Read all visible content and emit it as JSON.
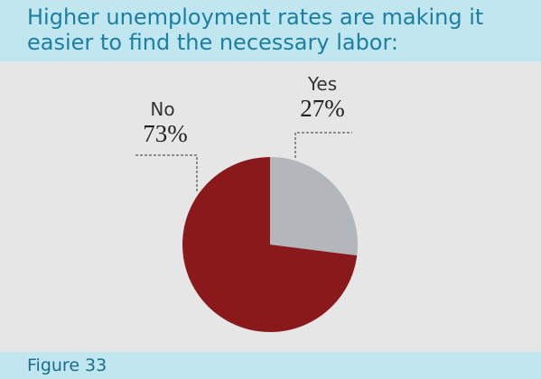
{
  "chart_data": {
    "type": "pie",
    "title": "Higher unemployment rates are making it easier to find the necessary labor:",
    "categories": [
      "Yes",
      "No"
    ],
    "values": [
      27,
      73
    ],
    "value_labels": [
      "27%",
      "73%"
    ],
    "colors": [
      "#b3b6bb",
      "#8a191c"
    ]
  },
  "footer": "Figure 33"
}
